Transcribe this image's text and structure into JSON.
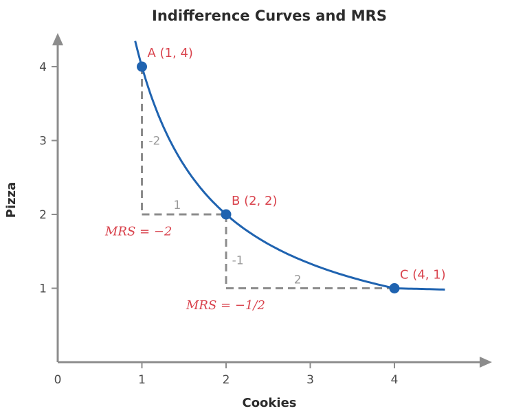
{
  "chart_data": {
    "type": "line",
    "title": "Indifference Curves and MRS",
    "xlabel": "Cookies",
    "ylabel": "Pizza",
    "x_ticks": [
      {
        "value": 0,
        "label": "0"
      },
      {
        "value": 1,
        "label": "1"
      },
      {
        "value": 2,
        "label": "2"
      },
      {
        "value": 3,
        "label": "3"
      },
      {
        "value": 4,
        "label": "4"
      }
    ],
    "y_ticks": [
      {
        "value": 1,
        "label": "1"
      },
      {
        "value": 2,
        "label": "2"
      },
      {
        "value": 3,
        "label": "3"
      },
      {
        "value": 4,
        "label": "4"
      }
    ],
    "xlim": [
      0,
      5
    ],
    "ylim": [
      0,
      4.5
    ],
    "curve": {
      "function": "y = 4 / x",
      "x_range": [
        0.92,
        4.6
      ],
      "color": "#1f63b0"
    },
    "points": [
      {
        "x": 1,
        "y": 4,
        "label": "A (1, 4)"
      },
      {
        "x": 2,
        "y": 2,
        "label": "B (2, 2)"
      },
      {
        "x": 4,
        "y": 1,
        "label": "C (4, 1)"
      }
    ],
    "segments": [
      {
        "from": [
          1,
          4
        ],
        "to": [
          1,
          2
        ]
      },
      {
        "from": [
          1,
          2
        ],
        "to": [
          2,
          2
        ]
      },
      {
        "from": [
          2,
          2
        ],
        "to": [
          2,
          1
        ]
      },
      {
        "from": [
          2,
          1
        ],
        "to": [
          4,
          1
        ]
      }
    ],
    "annotations": [
      {
        "text": "-2",
        "x": 1.15,
        "y": 3.0,
        "role": "rise"
      },
      {
        "text": "1",
        "x": 1.42,
        "y": 2.13,
        "role": "run"
      },
      {
        "text": "-1",
        "x": 2.14,
        "y": 1.38,
        "role": "rise"
      },
      {
        "text": "2",
        "x": 2.85,
        "y": 1.12,
        "role": "run"
      },
      {
        "text": "MRS = −2",
        "x": 0.95,
        "y": 1.77,
        "role": "mrs"
      },
      {
        "text": "MRS = −1/2",
        "x": 1.9,
        "y": 0.77,
        "role": "mrs"
      }
    ],
    "grid": false,
    "colors": {
      "curve": "#1f63b0",
      "points": "#1f63b0",
      "labels": "#d9434d",
      "dashes": "#8c8c8c",
      "axes": "#8c8c8c"
    }
  }
}
